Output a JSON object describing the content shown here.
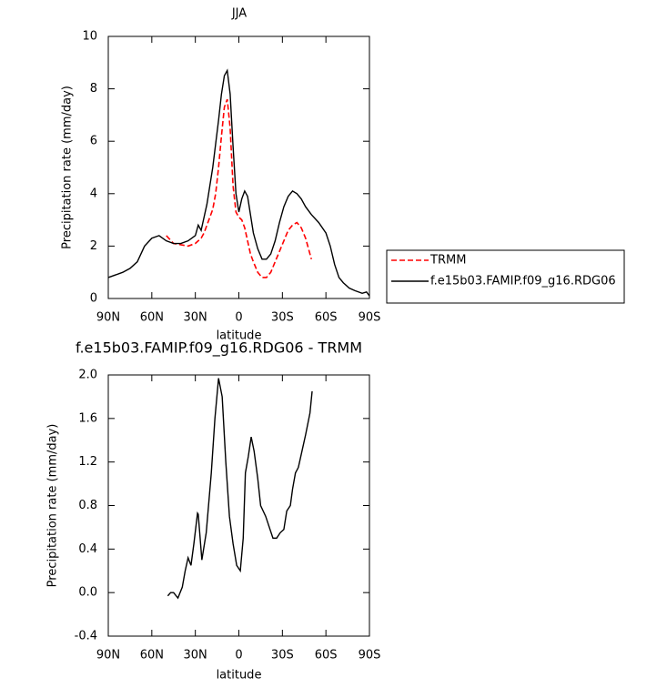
{
  "chart_data": [
    {
      "type": "line",
      "title": "JJA",
      "x_label": "latitude",
      "y_label": "Precipitation rate (mm/day)",
      "x": [
        90,
        85,
        80,
        75,
        70,
        65,
        60,
        55,
        50,
        45,
        40,
        35,
        30,
        28,
        26,
        24,
        22,
        20,
        18,
        16,
        14,
        12,
        10,
        8,
        6,
        4,
        2,
        0,
        -2,
        -4,
        -6,
        -8,
        -10,
        -13,
        -16,
        -19,
        -22,
        -25,
        -28,
        -31,
        -34,
        -37,
        -40,
        -43,
        -46,
        -50,
        -55,
        -60,
        -63,
        -66,
        -69,
        -72,
        -76,
        -80,
        -85,
        -88,
        -90
      ],
      "series": [
        {
          "name": "TRMM",
          "color": "#ff0000",
          "dashed": true,
          "values": [
            null,
            null,
            null,
            null,
            null,
            null,
            null,
            null,
            2.4,
            2.1,
            2.05,
            2.0,
            2.1,
            2.2,
            2.3,
            2.5,
            2.8,
            3.1,
            3.4,
            4.0,
            5.0,
            6.2,
            7.3,
            7.6,
            6.5,
            4.3,
            3.3,
            3.1,
            3.0,
            2.7,
            2.2,
            1.7,
            1.4,
            1.0,
            0.8,
            0.8,
            1.0,
            1.4,
            1.8,
            2.2,
            2.6,
            2.8,
            2.9,
            2.7,
            2.3,
            1.5,
            null,
            null,
            null,
            null,
            null,
            null,
            null,
            null,
            null,
            null,
            null
          ]
        },
        {
          "name": "f.e15b03.FAMIP.f09_g16.RDG06",
          "color": "#000000",
          "dashed": false,
          "values": [
            0.8,
            0.9,
            1.0,
            1.15,
            1.4,
            2.0,
            2.3,
            2.4,
            2.2,
            2.1,
            2.1,
            2.2,
            2.4,
            2.8,
            2.6,
            3.1,
            3.6,
            4.3,
            5.0,
            5.9,
            6.8,
            7.8,
            8.5,
            8.7,
            7.8,
            5.8,
            4.0,
            3.3,
            3.8,
            4.1,
            3.9,
            3.2,
            2.5,
            1.9,
            1.5,
            1.5,
            1.7,
            2.2,
            2.9,
            3.5,
            3.9,
            4.1,
            4.0,
            3.8,
            3.5,
            3.2,
            2.9,
            2.5,
            2.0,
            1.3,
            0.8,
            0.6,
            0.4,
            0.3,
            0.2,
            0.25,
            0.1
          ]
        }
      ],
      "xlim": [
        90,
        -90
      ],
      "xticks": [
        {
          "value": 90,
          "label": "90N"
        },
        {
          "value": 60,
          "label": "60N"
        },
        {
          "value": 30,
          "label": "30N"
        },
        0,
        {
          "value": -30,
          "label": "30S"
        },
        {
          "value": -60,
          "label": "60S"
        },
        {
          "value": -90,
          "label": "90S"
        }
      ],
      "ylim": [
        0,
        10
      ],
      "yticks": [
        0,
        2,
        4,
        6,
        8,
        10
      ],
      "legend": "right"
    },
    {
      "type": "line",
      "title": "f.e15b03.FAMIP.f09_g16.RDG06 - TRMM",
      "x_label": "latitude",
      "y_label": "Precipitation rate (mm/day)",
      "x": [
        49,
        47,
        45,
        42,
        39,
        37,
        35,
        33,
        31,
        28.5,
        28,
        25.5,
        22.5,
        19,
        16.5,
        14,
        11.5,
        9,
        6.5,
        4,
        1.5,
        -1,
        -3,
        -4.5,
        -6.5,
        -8.5,
        -10.5,
        -13,
        -15,
        -18.5,
        -21,
        -23.5,
        -26,
        -28.5,
        -31,
        -33,
        -35.5,
        -37,
        -39,
        -41,
        -43.5,
        -46,
        -49,
        -50.5
      ],
      "values": [
        -0.03,
        0.0,
        0.0,
        -0.05,
        0.05,
        0.2,
        0.32,
        0.25,
        0.45,
        0.73,
        0.72,
        0.3,
        0.55,
        1.1,
        1.6,
        1.97,
        1.8,
        1.2,
        0.7,
        0.45,
        0.25,
        0.2,
        0.5,
        1.1,
        1.25,
        1.43,
        1.3,
        1.05,
        0.8,
        0.7,
        0.6,
        0.5,
        0.5,
        0.55,
        0.58,
        0.75,
        0.8,
        0.95,
        1.1,
        1.15,
        1.3,
        1.45,
        1.65,
        1.85
      ],
      "color": "#000000",
      "xlim": [
        90,
        -90
      ],
      "xticks": [
        {
          "value": 90,
          "label": "90N"
        },
        {
          "value": 60,
          "label": "60N"
        },
        {
          "value": 30,
          "label": "30N"
        },
        0,
        {
          "value": -30,
          "label": "30S"
        },
        {
          "value": -60,
          "label": "60S"
        },
        {
          "value": -90,
          "label": "90S"
        }
      ],
      "ylim": [
        -0.4,
        2.0
      ],
      "yticks": [
        {
          "value": -0.4,
          "label": "-0.4"
        },
        {
          "value": 0,
          "label": "0.0"
        },
        {
          "value": 0.4,
          "label": "0.4"
        },
        {
          "value": 0.8,
          "label": "0.8"
        },
        {
          "value": 1.2,
          "label": "1.2"
        },
        {
          "value": 1.6,
          "label": "1.6"
        },
        {
          "value": 2.0,
          "label": "2.0"
        }
      ]
    }
  ]
}
